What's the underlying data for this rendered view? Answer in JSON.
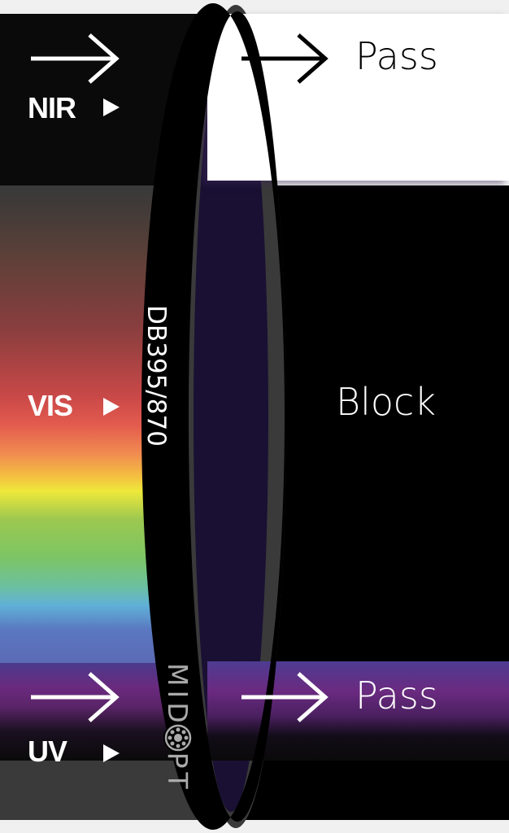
{
  "bands": {
    "nir": {
      "label": "NIR",
      "result": "Pass"
    },
    "vis": {
      "label": "VIS",
      "result": "Block"
    },
    "uv": {
      "label": "UV",
      "result": "Pass"
    }
  },
  "filter": {
    "model": "DB395/870",
    "brand": "MIDOPT"
  },
  "colors": {
    "lens": "#1a1033",
    "ring": "#3a3a3a",
    "pass_nir": "#ffffff",
    "pass_uv": "#6a2a80",
    "block": "#000000"
  },
  "icons": [
    "arrow-right-icon",
    "play-triangle-icon",
    "midopt-logo-icon"
  ]
}
